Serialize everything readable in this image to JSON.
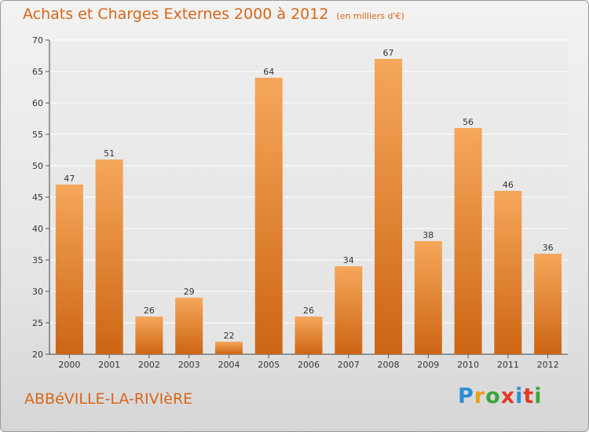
{
  "header": {
    "title": "Achats et Charges Externes 2000 à 2012",
    "subtitle": "(en milliers d'€)"
  },
  "footer": {
    "town": "ABBéVILLE-LA-RIVIèRE",
    "brand": "Proxiti",
    "brand_colors": [
      "#2a8fd4",
      "#e6a21c",
      "#3aa63a",
      "#e23a26",
      "#2a8fd4",
      "#e23a26",
      "#3aa63a"
    ]
  },
  "colors": {
    "accent": "#d8661a",
    "bar_top": "#f6a75a",
    "bar_bottom": "#cc6514"
  },
  "chart_data": {
    "type": "bar",
    "title": "Achats et Charges Externes 2000 à 2012",
    "subtitle": "(en milliers d'€)",
    "categories": [
      "2000",
      "2001",
      "2002",
      "2003",
      "2004",
      "2005",
      "2006",
      "2007",
      "2008",
      "2009",
      "2010",
      "2011",
      "2012"
    ],
    "values": [
      47,
      51,
      26,
      29,
      22,
      64,
      26,
      34,
      67,
      38,
      56,
      46,
      36
    ],
    "ylim": [
      20,
      70
    ],
    "yticks": [
      20,
      25,
      30,
      35,
      40,
      45,
      50,
      55,
      60,
      65,
      70
    ],
    "grid": true,
    "legend": "none"
  }
}
